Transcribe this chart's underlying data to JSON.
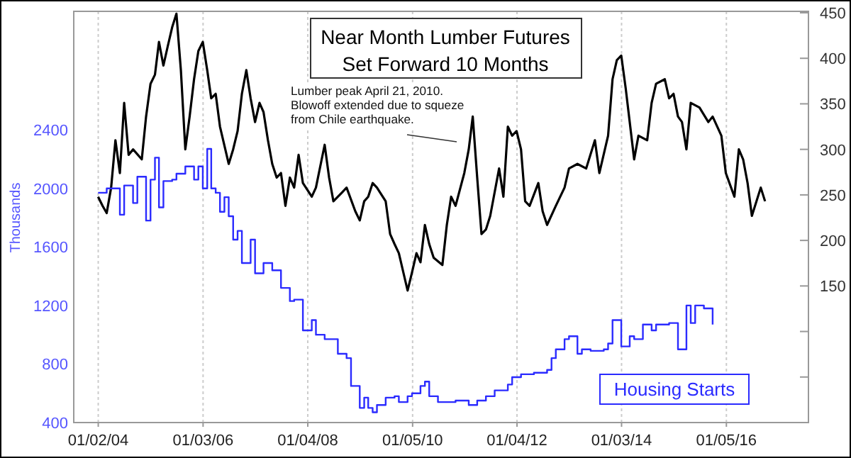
{
  "chart_data": {
    "type": "line",
    "title": "Near Month Lumber Futures\nSet Forward 10 Months",
    "ylabel": "Thousands",
    "annotations": [
      "Lumber peak April 21, 2010.\nBlowoff extended due to squeze\nfrom Chile earthquake."
    ],
    "xlim": [
      "2003-07-15",
      "2017-07-31"
    ],
    "xticks": [
      {
        "value": "2004-01-02",
        "label": "01/02/04"
      },
      {
        "value": "2006-01-03",
        "label": "01/03/06"
      },
      {
        "value": "2008-01-04",
        "label": "01/04/08"
      },
      {
        "value": "2010-01-05",
        "label": "01/05/10"
      },
      {
        "value": "2012-01-04",
        "label": "01/04/12"
      },
      {
        "value": "2014-01-03",
        "label": "01/03/14"
      },
      {
        "value": "2016-01-05",
        "label": "01/05/16"
      }
    ],
    "ylim": [
      400,
      3200
    ],
    "yticks": [
      400,
      800,
      1200,
      1600,
      2000,
      2400
    ],
    "y2lim": [
      0,
      450
    ],
    "y2ticks": [
      {
        "value": 50,
        "label": null
      },
      {
        "value": 100,
        "label": null
      },
      150,
      200,
      250,
      300,
      350,
      400,
      450
    ],
    "grid": "x",
    "legend": "bottom right",
    "series": [
      {
        "axis": "y2",
        "color": "#000000",
        "x": [
          "2004-01",
          "2004-02",
          "2004-03",
          "2004-04",
          "2004-05",
          "2004-06",
          "2004-07",
          "2004-08",
          "2004-09",
          "2004-11",
          "2004-12",
          "2005-01",
          "2005-02",
          "2005-03",
          "2005-04",
          "2005-05",
          "2005-06",
          "2005-07",
          "2005-08",
          "2005-09",
          "2005-10",
          "2005-11",
          "2005-12",
          "2006-01",
          "2006-02",
          "2006-03",
          "2006-04",
          "2006-05",
          "2006-07",
          "2006-08",
          "2006-09",
          "2006-10",
          "2006-11",
          "2006-12",
          "2007-01",
          "2007-02",
          "2007-03",
          "2007-04",
          "2007-05",
          "2007-06",
          "2007-07",
          "2007-08",
          "2007-09",
          "2007-10",
          "2007-11",
          "2007-12",
          "2008-02",
          "2008-03",
          "2008-05",
          "2008-06",
          "2008-07",
          "2008-09",
          "2008-10",
          "2008-12",
          "2009-01",
          "2009-02",
          "2009-03",
          "2009-04",
          "2009-05",
          "2009-07",
          "2009-08",
          "2009-09",
          "2009-10",
          "2009-12",
          "2010-01",
          "2010-02",
          "2010-03",
          "2010-04",
          "2010-05",
          "2010-06",
          "2010-08",
          "2010-09",
          "2010-10",
          "2010-11",
          "2011-01",
          "2011-02",
          "2011-03",
          "2011-04",
          "2011-05",
          "2011-06",
          "2011-07",
          "2011-09",
          "2011-10",
          "2011-11",
          "2011-12",
          "2012-01",
          "2012-02",
          "2012-03",
          "2012-04",
          "2012-06",
          "2012-07",
          "2012-08",
          "2012-10",
          "2012-12",
          "2013-01",
          "2013-03",
          "2013-05",
          "2013-07",
          "2013-08",
          "2013-10",
          "2013-11",
          "2013-12",
          "2014-01",
          "2014-02",
          "2014-04",
          "2014-05",
          "2014-07",
          "2014-08",
          "2014-09",
          "2014-11",
          "2014-12",
          "2015-01",
          "2015-02",
          "2015-03",
          "2015-04",
          "2015-05",
          "2015-07",
          "2015-09",
          "2015-10",
          "2015-12",
          "2016-01",
          "2016-03",
          "2016-04",
          "2016-05",
          "2016-06",
          "2016-07",
          "2016-09",
          "2016-10"
        ],
        "values": [
          248,
          238,
          230,
          258,
          310,
          274,
          351,
          294,
          300,
          289,
          336,
          372,
          382,
          418,
          392,
          413,
          434,
          449,
          387,
          300,
          336,
          377,
          408,
          418,
          387,
          356,
          361,
          325,
          284,
          300,
          320,
          361,
          387,
          356,
          330,
          351,
          341,
          310,
          284,
          269,
          274,
          238,
          269,
          258,
          294,
          263,
          248,
          258,
          305,
          269,
          243,
          253,
          258,
          232,
          222,
          243,
          248,
          263,
          258,
          243,
          207,
          196,
          186,
          145,
          165,
          186,
          176,
          217,
          196,
          181,
          173,
          217,
          248,
          238,
          274,
          300,
          336,
          269,
          207,
          212,
          227,
          279,
          248,
          325,
          315,
          320,
          300,
          243,
          238,
          263,
          232,
          217,
          238,
          258,
          279,
          284,
          279,
          310,
          274,
          315,
          377,
          398,
          403,
          367,
          289,
          315,
          310,
          351,
          372,
          377,
          356,
          361,
          336,
          330,
          300,
          351,
          346,
          330,
          336,
          315,
          274,
          248,
          300,
          289,
          263,
          227,
          258,
          243
        ]
      },
      {
        "type": "step",
        "axis": "y",
        "name": "Housing Starts",
        "color": "#2b2bff",
        "x": [
          "2004-01",
          "2004-03",
          "2004-05",
          "2004-06",
          "2004-07",
          "2004-09",
          "2004-10",
          "2004-12",
          "2005-01",
          "2005-02",
          "2005-03",
          "2005-04",
          "2005-06",
          "2005-07",
          "2005-09",
          "2005-11",
          "2005-12",
          "2006-01",
          "2006-02",
          "2006-03",
          "2006-04",
          "2006-05",
          "2006-06",
          "2006-07",
          "2006-08",
          "2006-09",
          "2006-10",
          "2006-12",
          "2007-01",
          "2007-03",
          "2007-05",
          "2007-07",
          "2007-09",
          "2007-10",
          "2007-12",
          "2008-02",
          "2008-03",
          "2008-05",
          "2008-08",
          "2008-10",
          "2008-11",
          "2009-01",
          "2009-02",
          "2009-03",
          "2009-04",
          "2009-05",
          "2009-07",
          "2009-09",
          "2009-10",
          "2009-12",
          "2010-01",
          "2010-03",
          "2010-04",
          "2010-05",
          "2010-07",
          "2010-11",
          "2011-02",
          "2011-04",
          "2011-06",
          "2011-08",
          "2011-11",
          "2011-12",
          "2012-02",
          "2012-05",
          "2012-08",
          "2012-09",
          "2012-10",
          "2012-12",
          "2013-01",
          "2013-03",
          "2013-04",
          "2013-06",
          "2013-09",
          "2013-10",
          "2013-11",
          "2014-01",
          "2014-03",
          "2014-04",
          "2014-06",
          "2014-08",
          "2014-09",
          "2014-11",
          "2014-12",
          "2015-02",
          "2015-04",
          "2015-05",
          "2015-06",
          "2015-08",
          "2015-10"
        ],
        "values": [
          1970,
          2000,
          2000,
          1820,
          2020,
          1900,
          2080,
          1780,
          2060,
          2210,
          1870,
          2050,
          2060,
          2100,
          2150,
          2060,
          2150,
          2000,
          2270,
          2000,
          1970,
          1840,
          1940,
          1810,
          1650,
          1710,
          1490,
          1650,
          1420,
          1490,
          1440,
          1320,
          1230,
          1240,
          1030,
          1100,
          1000,
          970,
          870,
          840,
          650,
          500,
          570,
          500,
          470,
          520,
          570,
          580,
          540,
          580,
          600,
          650,
          680,
          580,
          540,
          550,
          520,
          550,
          580,
          620,
          660,
          710,
          730,
          740,
          760,
          840,
          900,
          970,
          990,
          870,
          900,
          890,
          900,
          940,
          1100,
          920,
          990,
          970,
          1070,
          1030,
          1070,
          1070,
          1080,
          900,
          1200,
          1080,
          1200,
          1180,
          1070
        ]
      }
    ]
  }
}
